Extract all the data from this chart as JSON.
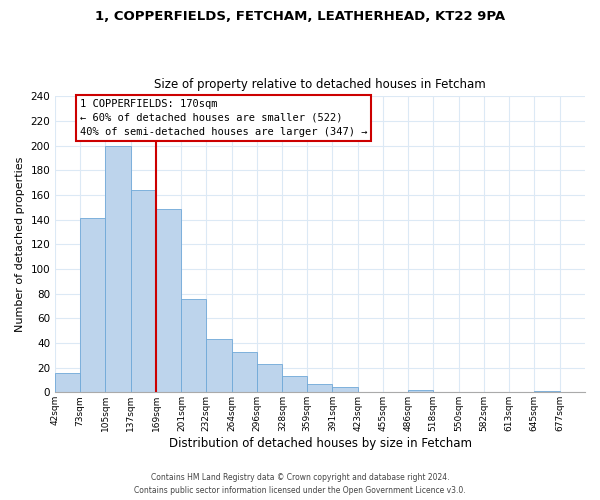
{
  "title1": "1, COPPERFIELDS, FETCHAM, LEATHERHEAD, KT22 9PA",
  "title2": "Size of property relative to detached houses in Fetcham",
  "xlabel": "Distribution of detached houses by size in Fetcham",
  "ylabel": "Number of detached properties",
  "bin_labels": [
    "42sqm",
    "73sqm",
    "105sqm",
    "137sqm",
    "169sqm",
    "201sqm",
    "232sqm",
    "264sqm",
    "296sqm",
    "328sqm",
    "359sqm",
    "391sqm",
    "423sqm",
    "455sqm",
    "486sqm",
    "518sqm",
    "550sqm",
    "582sqm",
    "613sqm",
    "645sqm",
    "677sqm"
  ],
  "bin_starts": [
    42,
    73,
    105,
    137,
    169,
    201,
    232,
    264,
    296,
    328,
    359,
    391,
    423,
    455,
    486,
    518,
    550,
    582,
    613,
    645,
    677
  ],
  "bar_heights": [
    16,
    141,
    200,
    164,
    149,
    76,
    43,
    33,
    23,
    13,
    7,
    4,
    0,
    0,
    2,
    0,
    0,
    0,
    0,
    1,
    0
  ],
  "bar_color": "#bdd4ec",
  "bar_edge_color": "#6fa8d8",
  "annotation_title": "1 COPPERFIELDS: 170sqm",
  "annotation_line1": "← 60% of detached houses are smaller (522)",
  "annotation_line2": "40% of semi-detached houses are larger (347) →",
  "annotation_box_edge": "#cc0000",
  "property_line_x": 169,
  "property_line_color": "#cc0000",
  "ylim": [
    0,
    240
  ],
  "yticks": [
    0,
    20,
    40,
    60,
    80,
    100,
    120,
    140,
    160,
    180,
    200,
    220,
    240
  ],
  "grid_color": "#dce9f5",
  "footer1": "Contains HM Land Registry data © Crown copyright and database right 2024.",
  "footer2": "Contains public sector information licensed under the Open Government Licence v3.0."
}
